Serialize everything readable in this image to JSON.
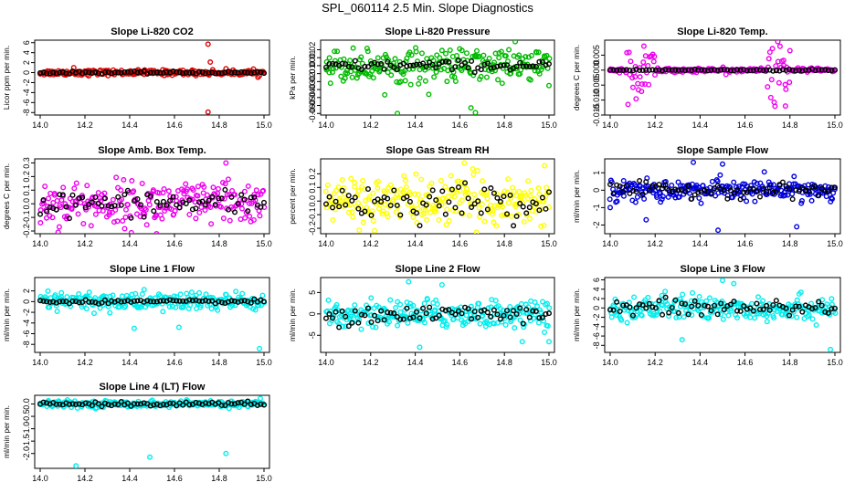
{
  "title": "SPL_060114  2.5 Min. Slope Diagnostics",
  "chart_data": [
    {
      "type": "scatter",
      "title": "Slope Li-820 CO2",
      "ylabel": "Licor ppm per min.",
      "xlim": [
        14.0,
        15.0
      ],
      "ylim": [
        -8.5,
        6.5
      ],
      "xticks": [
        "14.0",
        "14.2",
        "14.4",
        "14.6",
        "14.8",
        "15.0"
      ],
      "yticks": [
        -8,
        -6,
        -4,
        -2,
        0,
        2,
        4,
        6
      ],
      "ytick_labels": [
        "-8",
        "-6",
        "-4",
        "-2",
        "0",
        "2",
        "4",
        "6"
      ],
      "color": "#dd0000",
      "spread": 0.3,
      "black_spread": 0.15,
      "outliers": [
        [
          14.75,
          5.7
        ],
        [
          14.76,
          2.1
        ],
        [
          14.75,
          -7.9
        ],
        [
          14.15,
          1.0
        ]
      ]
    },
    {
      "type": "scatter",
      "title": "Slope Li-820 Pressure",
      "ylabel": "kPa per min.",
      "xlim": [
        14.0,
        15.0
      ],
      "ylim": [
        -0.062,
        0.032
      ],
      "xticks": [
        "14.0",
        "14.2",
        "14.4",
        "14.6",
        "14.8",
        "15.0"
      ],
      "yticks": [
        -0.06,
        -0.05,
        -0.04,
        -0.03,
        -0.02,
        -0.01,
        0,
        0.01,
        0.02
      ],
      "ytick_labels": [
        "-0.06",
        "-0.05",
        "-0.04",
        "-0.03",
        "-0.02",
        "-0.01",
        "0.00",
        "0.01",
        "0.02"
      ],
      "color": "#00bb00",
      "spread": 0.012,
      "black_spread": 0.004,
      "outliers": [
        [
          14.32,
          -0.06
        ],
        [
          14.65,
          -0.053
        ],
        [
          14.67,
          -0.059
        ],
        [
          15.0,
          -0.025
        ],
        [
          14.82,
          0.02
        ]
      ]
    },
    {
      "type": "scatter",
      "title": "Slope Li-820 Temp.",
      "ylabel": "degrees C per min.",
      "xlim": [
        14.0,
        15.0
      ],
      "ylim": [
        -0.015,
        0.01
      ],
      "xticks": [
        "14.0",
        "14.2",
        "14.4",
        "14.6",
        "14.8",
        "15.0"
      ],
      "yticks": [
        -0.015,
        -0.01,
        -0.005,
        0,
        0.005
      ],
      "ytick_labels": [
        "-0.015",
        "-0.010",
        "-0.005",
        "0.000",
        "0.005"
      ],
      "color": "#ee00ee",
      "spread": 0.0004,
      "black_spread": 0.0002,
      "bursts": [
        [
          14.14,
          0.07,
          0.005
        ],
        [
          14.75,
          0.05,
          0.006
        ]
      ],
      "outliers": [
        [
          14.15,
          0.008
        ],
        [
          14.78,
          -0.012
        ],
        [
          14.8,
          0.0065
        ]
      ]
    },
    {
      "type": "scatter",
      "title": "Slope Amb. Box Temp.",
      "ylabel": "degrees C per min.",
      "xlim": [
        14.0,
        15.0
      ],
      "ylim": [
        -0.22,
        0.33
      ],
      "xticks": [
        "14.0",
        "14.2",
        "14.4",
        "14.6",
        "14.8",
        "15.0"
      ],
      "yticks": [
        -0.2,
        -0.1,
        0,
        0.1,
        0.2,
        0.3
      ],
      "ytick_labels": [
        "-0.2",
        "-0.1",
        "0.0",
        "0.1",
        "0.2",
        "0.3"
      ],
      "color": "#ee00ee",
      "spread": 0.09,
      "black_spread": 0.06,
      "outliers": [
        [
          14.83,
          0.3
        ],
        [
          14.52,
          -0.22
        ]
      ]
    },
    {
      "type": "scatter",
      "title": "Slope Gas Stream RH",
      "ylabel": "percent per min.",
      "xlim": [
        14.0,
        15.0
      ],
      "ylim": [
        -0.24,
        0.31
      ],
      "xticks": [
        "14.0",
        "14.2",
        "14.4",
        "14.6",
        "14.8",
        "15.0"
      ],
      "yticks": [
        -0.2,
        -0.1,
        0,
        0.1,
        0.2
      ],
      "ytick_labels": [
        "-0.2",
        "-0.1",
        "0.0",
        "0.1",
        "0.2"
      ],
      "color": "#ffff00",
      "spread": 0.1,
      "black_spread": 0.08,
      "outliers": [
        [
          14.62,
          0.28
        ],
        [
          14.98,
          0.26
        ]
      ]
    },
    {
      "type": "scatter",
      "title": "Slope Sample Flow",
      "ylabel": "ml/min per min.",
      "xlim": [
        14.0,
        15.0
      ],
      "ylim": [
        -2.5,
        1.8
      ],
      "xticks": [
        "14.0",
        "14.2",
        "14.4",
        "14.6",
        "14.8",
        "15.0"
      ],
      "yticks": [
        -2,
        -1,
        0,
        1
      ],
      "ytick_labels": [
        "-2",
        "-1",
        "0",
        "1"
      ],
      "color": "#0000dd",
      "spread": 0.35,
      "black_spread": 0.25,
      "outliers": [
        [
          14.37,
          1.6
        ],
        [
          14.5,
          1.5
        ],
        [
          14.16,
          -1.7
        ],
        [
          14.48,
          -2.3
        ],
        [
          14.83,
          -2.1
        ],
        [
          14.0,
          -1.0
        ]
      ]
    },
    {
      "type": "scatter",
      "title": "Slope Line 1 Flow",
      "ylabel": "ml/min per min.",
      "xlim": [
        14.0,
        15.0
      ],
      "ylim": [
        -9.5,
        4.5
      ],
      "xticks": [
        "14.0",
        "14.2",
        "14.4",
        "14.6",
        "14.8",
        "15.0"
      ],
      "yticks": [
        -8,
        -6,
        -4,
        -2,
        0,
        2
      ],
      "ytick_labels": [
        "-8",
        "-6",
        "-4",
        "-2",
        "0",
        "2"
      ],
      "color": "#00eeee",
      "spread": 1.0,
      "black_spread": 0.2,
      "outliers": [
        [
          14.98,
          -8.8
        ],
        [
          14.42,
          -5.0
        ],
        [
          14.62,
          -4.8
        ]
      ]
    },
    {
      "type": "scatter",
      "title": "Slope Line 2 Flow",
      "ylabel": "ml/min per min.",
      "xlim": [
        14.0,
        15.0
      ],
      "ylim": [
        -9.0,
        8.5
      ],
      "xticks": [
        "14.0",
        "14.2",
        "14.4",
        "14.6",
        "14.8",
        "15.0"
      ],
      "yticks": [
        -5,
        0,
        5
      ],
      "ytick_labels": [
        "-5",
        "0",
        "5"
      ],
      "color": "#00eeee",
      "spread": 1.8,
      "black_spread": 1.5,
      "outliers": [
        [
          14.37,
          7.5
        ],
        [
          14.52,
          6.8
        ],
        [
          14.42,
          -7.8
        ],
        [
          14.88,
          -6.5
        ],
        [
          15.0,
          -6.5
        ]
      ]
    },
    {
      "type": "scatter",
      "title": "Slope Line 3 Flow",
      "ylabel": "ml/min per min.",
      "xlim": [
        14.0,
        15.0
      ],
      "ylim": [
        -9.5,
        6.5
      ],
      "xticks": [
        "14.0",
        "14.2",
        "14.4",
        "14.6",
        "14.8",
        "15.0"
      ],
      "yticks": [
        -8,
        -6,
        -4,
        -2,
        0,
        2,
        4,
        6
      ],
      "ytick_labels": [
        "-8",
        "-6",
        "-4",
        "-2",
        "0",
        "2",
        "4",
        "6"
      ],
      "color": "#00eeee",
      "spread": 1.5,
      "black_spread": 1.3,
      "outliers": [
        [
          14.5,
          5.9
        ],
        [
          14.55,
          5.2
        ],
        [
          14.98,
          -8.9
        ],
        [
          14.32,
          -6.8
        ]
      ]
    },
    {
      "type": "scatter",
      "title": "Slope Line 4 (LT) Flow",
      "ylabel": "ml/min per min.",
      "xlim": [
        14.0,
        15.0
      ],
      "ylim": [
        -2.6,
        0.35
      ],
      "xticks": [
        "14.0",
        "14.2",
        "14.4",
        "14.6",
        "14.8",
        "15.0"
      ],
      "yticks": [
        -2.0,
        -1.5,
        -1.0,
        -0.5,
        0.0
      ],
      "ytick_labels": [
        "-2.0",
        "-1.5",
        "-1.0",
        "-0.5",
        "0.0"
      ],
      "color": "#00eeee",
      "spread": 0.07,
      "black_spread": 0.05,
      "outliers": [
        [
          14.16,
          -2.5
        ],
        [
          14.49,
          -2.15
        ],
        [
          14.83,
          -2.0
        ]
      ]
    }
  ]
}
